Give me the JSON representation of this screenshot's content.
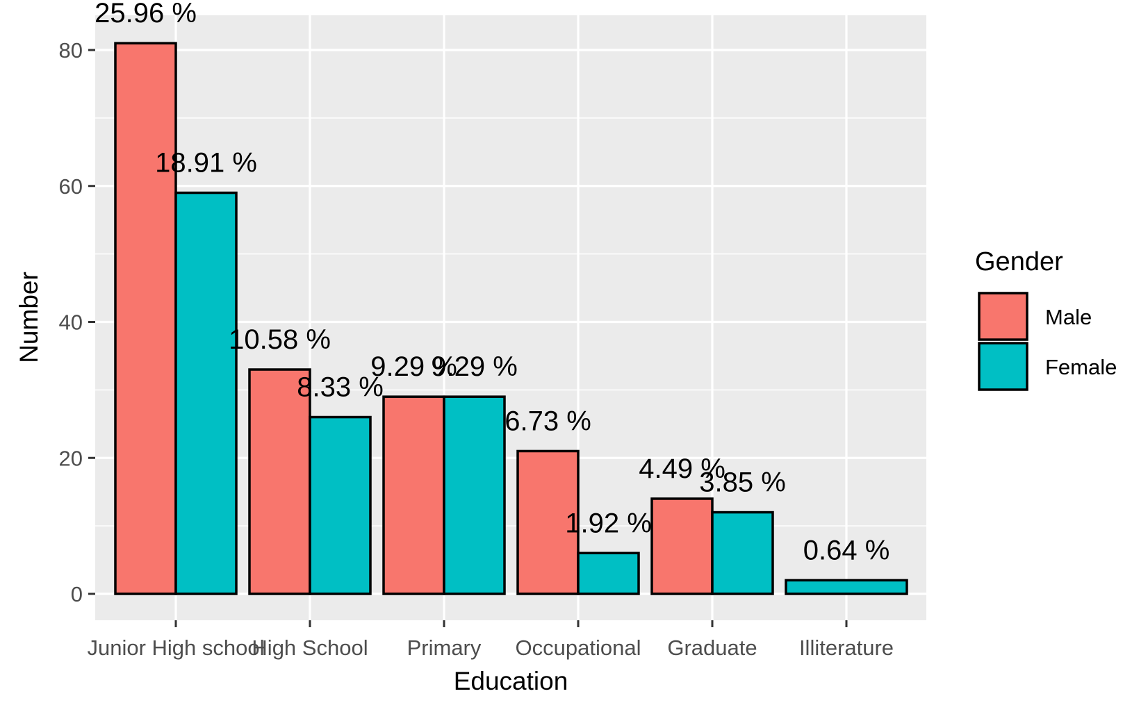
{
  "chart_data": {
    "type": "bar",
    "title": "",
    "xlabel": "Education",
    "ylabel": "Number",
    "categories": [
      "Junior High school",
      "High School",
      "Primary",
      "Occupational",
      "Graduate",
      "Illiterature"
    ],
    "series": [
      {
        "name": "Male",
        "color": "#F8766D",
        "values": [
          81,
          33,
          29,
          21,
          14,
          null
        ],
        "labels": [
          "25.96 %",
          "10.58 %",
          "9.29 %",
          "6.73 %",
          "4.49 %",
          null
        ]
      },
      {
        "name": "Female",
        "color": "#00BFC4",
        "values": [
          59,
          26,
          29,
          6,
          12,
          2
        ],
        "labels": [
          "18.91 %",
          "8.33 %",
          "9.29 %",
          "1.92 %",
          "3.85 %",
          "0.64 %"
        ]
      }
    ],
    "ylim": [
      -4,
      85
    ],
    "yticks": [
      0,
      20,
      40,
      60,
      80
    ],
    "grid": true,
    "legend": {
      "title": "Gender",
      "position": "right",
      "entries": [
        "Male",
        "Female"
      ]
    }
  },
  "colors": {
    "panel_bg": "#EBEBEB",
    "grid": "#FFFFFF",
    "bar_outline": "#000000",
    "tick_text": "#4D4D4D",
    "tick_mark": "#333333"
  }
}
